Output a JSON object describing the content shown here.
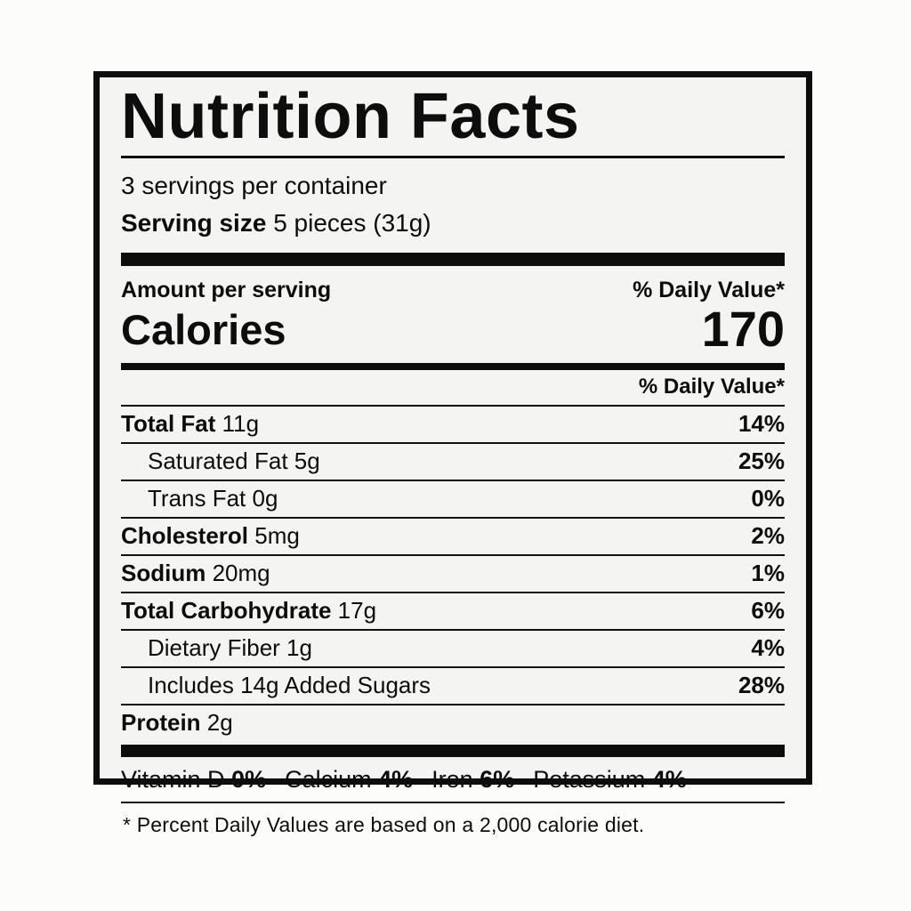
{
  "label": {
    "title": "Nutrition Facts",
    "servings_per_container": "3 servings per container",
    "serving_size_label": "Serving size",
    "serving_size_value": "5 pieces (31g)",
    "amount_per_serving": "Amount per serving",
    "daily_value_header_top": "% Daily Value*",
    "calories_label": "Calories",
    "calories_value": "170",
    "daily_value_header": "% Daily Value*",
    "rows": [
      {
        "name": "Total Fat",
        "amount": "11g",
        "dv": "14%",
        "bold": true,
        "indent": 0
      },
      {
        "name": "Saturated Fat",
        "amount": "5g",
        "dv": "25%",
        "bold": false,
        "indent": 1
      },
      {
        "name": "Trans Fat",
        "amount": "0g",
        "dv": "0%",
        "bold": false,
        "indent": 1
      },
      {
        "name": "Cholesterol",
        "amount": "5mg",
        "dv": "2%",
        "bold": true,
        "indent": 0
      },
      {
        "name": "Sodium",
        "amount": "20mg",
        "dv": "1%",
        "bold": true,
        "indent": 0
      },
      {
        "name": "Total Carbohydrate",
        "amount": "17g",
        "dv": "6%",
        "bold": true,
        "indent": 0
      },
      {
        "name": "Dietary Fiber",
        "amount": "1g",
        "dv": "4%",
        "bold": false,
        "indent": 1
      },
      {
        "name": "Includes 14g Added Sugars",
        "amount": "",
        "dv": "28%",
        "bold": false,
        "indent": 1
      },
      {
        "name": "Protein",
        "amount": "2g",
        "dv": "",
        "bold": true,
        "indent": 0
      }
    ],
    "micronutrients": [
      {
        "name": "Vitamin D",
        "dv": "0%"
      },
      {
        "name": "Calcium",
        "dv": "4%"
      },
      {
        "name": "Iron",
        "dv": "6%"
      },
      {
        "name": "Potassium",
        "dv": "4%"
      }
    ],
    "micronutrient_separator": "·",
    "footnote": "* Percent Daily Values are based on a 2,000 calorie diet."
  },
  "colors": {
    "ink": "#0d0d0d",
    "label_background": "#f4f4f2",
    "page_background": "#fcfcfb"
  }
}
